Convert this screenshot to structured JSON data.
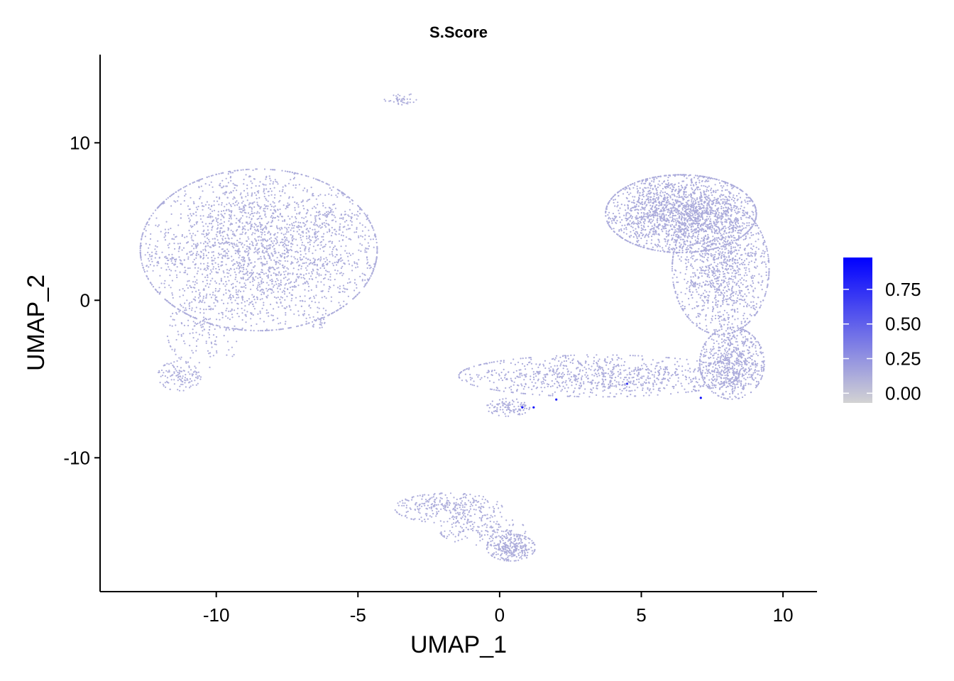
{
  "chart_data": {
    "type": "scatter",
    "title": "S.Score",
    "xlabel": "UMAP_1",
    "ylabel": "UMAP_2",
    "xlim": [
      -14.1,
      11.2
    ],
    "ylim": [
      -18.5,
      15.6
    ],
    "xticks": [
      -10,
      -5,
      0,
      5,
      10
    ],
    "xtick_labels": [
      "-10",
      "-5",
      "0",
      "5",
      "10"
    ],
    "yticks": [
      -10,
      0,
      10
    ],
    "ytick_labels": [
      "-10",
      "0",
      "10"
    ],
    "grid": false,
    "point_color": "#c9c0dc",
    "color_scale": {
      "name": "S.Score",
      "low_color": "#d3d3d3",
      "high_color": "#0000ff",
      "range": [
        -0.07,
        0.98
      ],
      "ticks": [
        0.0,
        0.25,
        0.5,
        0.75
      ],
      "tick_labels": [
        "0.00",
        "0.25",
        "0.50",
        "0.75"
      ],
      "placement": "right"
    },
    "clusters": [
      {
        "center": [
          -8.5,
          3.2
        ],
        "spread": [
          2.2,
          2.7
        ],
        "count": 2600,
        "score": 0.12
      },
      {
        "center": [
          -11.3,
          -4.8
        ],
        "spread": [
          0.4,
          0.5
        ],
        "count": 120,
        "score": 0.12
      },
      {
        "center": [
          -10.4,
          -2.0
        ],
        "spread": [
          0.7,
          1.2
        ],
        "count": 160,
        "score": 0.12
      },
      {
        "center": [
          -12.0,
          2.4
        ],
        "spread": [
          0.5,
          0.3
        ],
        "count": 30,
        "score": 0.12
      },
      {
        "center": [
          -5.6,
          5.3
        ],
        "spread": [
          0.5,
          0.3
        ],
        "count": 40,
        "score": 0.12
      },
      {
        "center": [
          -6.4,
          -1.4
        ],
        "spread": [
          0.2,
          0.2
        ],
        "count": 20,
        "score": 0.12
      },
      {
        "center": [
          -3.5,
          12.8
        ],
        "spread": [
          0.3,
          0.2
        ],
        "count": 40,
        "score": 0.12
      },
      {
        "center": [
          6.4,
          5.5
        ],
        "spread": [
          1.4,
          1.3
        ],
        "count": 2000,
        "score": 0.13
      },
      {
        "center": [
          7.8,
          2.0
        ],
        "spread": [
          0.9,
          2.2
        ],
        "count": 1200,
        "score": 0.13
      },
      {
        "center": [
          8.2,
          -4.0
        ],
        "spread": [
          0.6,
          1.2
        ],
        "count": 700,
        "score": 0.13
      },
      {
        "center": [
          3.5,
          -4.8
        ],
        "spread": [
          2.6,
          0.7
        ],
        "count": 900,
        "score": 0.13
      },
      {
        "center": [
          0.3,
          -6.8
        ],
        "spread": [
          0.4,
          0.3
        ],
        "count": 100,
        "score": 0.13
      },
      {
        "center": [
          -1.8,
          -13.2
        ],
        "spread": [
          1.0,
          0.5
        ],
        "count": 300,
        "score": 0.12
      },
      {
        "center": [
          0.4,
          -15.7
        ],
        "spread": [
          0.45,
          0.45
        ],
        "count": 300,
        "score": 0.12
      },
      {
        "center": [
          -0.6,
          -14.6
        ],
        "spread": [
          0.8,
          0.5
        ],
        "count": 150,
        "score": 0.12
      }
    ],
    "highlighted_points": [
      {
        "x": 0.8,
        "y": -6.8,
        "value": 0.85
      },
      {
        "x": 1.2,
        "y": -6.8,
        "value": 0.9
      },
      {
        "x": 2.0,
        "y": -6.3,
        "value": 0.8
      },
      {
        "x": 4.5,
        "y": -5.3,
        "value": 0.7
      },
      {
        "x": 7.1,
        "y": -6.2,
        "value": 0.9
      }
    ]
  }
}
